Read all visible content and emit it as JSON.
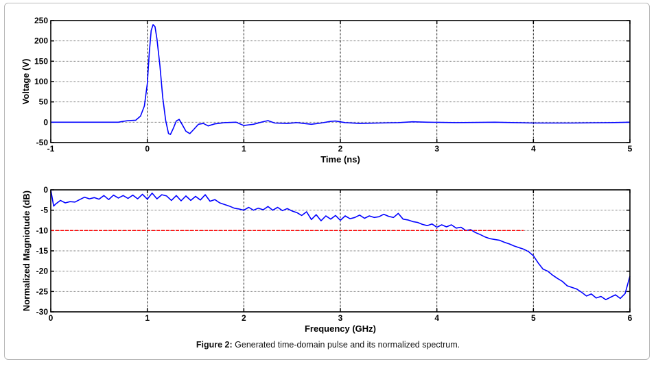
{
  "caption": {
    "label": "Figure 2:",
    "text": " Generated time-domain pulse and its normalized spectrum."
  },
  "chart_data": [
    {
      "type": "line",
      "title": "",
      "xlabel": "Time (ns)",
      "ylabel": "Voltage (V)",
      "xlim": [
        -1,
        5
      ],
      "ylim": [
        -50,
        250
      ],
      "xticks": [
        -1,
        0,
        1,
        2,
        3,
        4,
        5
      ],
      "yticks": [
        -50,
        0,
        50,
        100,
        150,
        200,
        250
      ],
      "grid": true,
      "series": [
        {
          "name": "pulse",
          "color": "#0000ff",
          "x": [
            -1,
            -0.3,
            -0.25,
            -0.2,
            -0.12,
            -0.07,
            -0.03,
            0,
            0.02,
            0.04,
            0.06,
            0.08,
            0.1,
            0.13,
            0.16,
            0.19,
            0.22,
            0.24,
            0.27,
            0.3,
            0.33,
            0.36,
            0.4,
            0.44,
            0.48,
            0.53,
            0.58,
            0.63,
            0.7,
            0.8,
            0.92,
            1.0,
            1.1,
            1.18,
            1.25,
            1.32,
            1.45,
            1.55,
            1.62,
            1.7,
            1.8,
            1.9,
            1.95,
            2.05,
            2.2,
            2.4,
            2.6,
            2.75,
            2.9,
            3.2,
            3.6,
            4.0,
            4.4,
            4.8,
            5.0
          ],
          "y": [
            0,
            0,
            2,
            4,
            5,
            15,
            40,
            95,
            170,
            225,
            240,
            235,
            205,
            140,
            60,
            5,
            -28,
            -30,
            -15,
            3,
            7,
            -5,
            -22,
            -28,
            -18,
            -5,
            -3,
            -9,
            -4,
            -1,
            0,
            -8,
            -5,
            0,
            4,
            -2,
            -3,
            -1,
            -3,
            -5,
            -2,
            2,
            3,
            -1,
            -3,
            -2,
            -1,
            1,
            0,
            -1,
            0,
            -2,
            -2,
            -1,
            0
          ]
        }
      ]
    },
    {
      "type": "line",
      "title": "",
      "xlabel": "Frequency (GHz)",
      "ylabel": "Normalized Magniotude (dB)",
      "xlim": [
        0,
        6
      ],
      "ylim": [
        -30,
        0
      ],
      "xticks": [
        0,
        1,
        2,
        3,
        4,
        5,
        6
      ],
      "yticks": [
        -30,
        -25,
        -20,
        -15,
        -10,
        -5,
        0
      ],
      "grid": true,
      "series": [
        {
          "name": "spectrum",
          "color": "#0000ff",
          "x": [
            0,
            0.03,
            0.05,
            0.1,
            0.15,
            0.2,
            0.25,
            0.3,
            0.35,
            0.4,
            0.45,
            0.5,
            0.55,
            0.6,
            0.65,
            0.7,
            0.75,
            0.8,
            0.85,
            0.9,
            0.95,
            1.0,
            1.05,
            1.1,
            1.15,
            1.2,
            1.25,
            1.3,
            1.35,
            1.4,
            1.45,
            1.5,
            1.55,
            1.6,
            1.65,
            1.7,
            1.75,
            1.8,
            1.85,
            1.9,
            1.95,
            2.0,
            2.05,
            2.1,
            2.15,
            2.2,
            2.25,
            2.3,
            2.35,
            2.4,
            2.45,
            2.5,
            2.55,
            2.6,
            2.65,
            2.7,
            2.75,
            2.8,
            2.85,
            2.9,
            2.95,
            3.0,
            3.05,
            3.1,
            3.15,
            3.2,
            3.25,
            3.3,
            3.35,
            3.4,
            3.45,
            3.5,
            3.55,
            3.6,
            3.65,
            3.7,
            3.75,
            3.8,
            3.85,
            3.9,
            3.95,
            4.0,
            4.05,
            4.1,
            4.15,
            4.2,
            4.25,
            4.3,
            4.35,
            4.4,
            4.45,
            4.5,
            4.55,
            4.6,
            4.65,
            4.7,
            4.75,
            4.8,
            4.85,
            4.9,
            4.95,
            5.0,
            5.05,
            5.1,
            5.15,
            5.2,
            5.25,
            5.3,
            5.35,
            5.4,
            5.45,
            5.5,
            5.55,
            5.6,
            5.65,
            5.7,
            5.75,
            5.8,
            5.85,
            5.9,
            5.95,
            6.0
          ],
          "y": [
            0,
            -4,
            -3.5,
            -2.6,
            -3.2,
            -2.9,
            -3,
            -2.4,
            -1.8,
            -2.2,
            -1.9,
            -2.3,
            -1.4,
            -2.4,
            -1.3,
            -2,
            -1.4,
            -2.1,
            -1.3,
            -2.2,
            -1.1,
            -2.3,
            -0.8,
            -2.2,
            -1.2,
            -1.5,
            -2.6,
            -1.4,
            -2.7,
            -1.5,
            -2.6,
            -1.6,
            -2.5,
            -1.2,
            -2.8,
            -2.4,
            -3.2,
            -3.6,
            -4,
            -4.5,
            -4.7,
            -5,
            -4.3,
            -5,
            -4.5,
            -4.9,
            -4.1,
            -5,
            -4.3,
            -5.1,
            -4.6,
            -5.2,
            -5.6,
            -6.3,
            -5.4,
            -7.3,
            -6.1,
            -7.6,
            -6.4,
            -7.2,
            -6.3,
            -7.5,
            -6.4,
            -7.1,
            -6.8,
            -6.2,
            -7,
            -6.4,
            -6.8,
            -6.6,
            -6,
            -6.5,
            -6.8,
            -5.8,
            -7.2,
            -7.4,
            -7.8,
            -8,
            -8.5,
            -8.8,
            -8.4,
            -9.2,
            -8.6,
            -9.1,
            -8.6,
            -9.4,
            -9.2,
            -10,
            -9.8,
            -10.5,
            -11,
            -11.6,
            -12,
            -12.2,
            -12.4,
            -12.9,
            -13.3,
            -13.8,
            -14.2,
            -14.6,
            -15.2,
            -16.2,
            -18,
            -19.5,
            -20,
            -21,
            -21.8,
            -22.5,
            -23.6,
            -24,
            -24.4,
            -25.2,
            -26.1,
            -25.6,
            -26.6,
            -26.2,
            -27,
            -26.4,
            -25.8,
            -26.7,
            -25.5,
            -21.2
          ]
        },
        {
          "name": "-10 dB reference",
          "color": "#ff0000",
          "style": "dashed",
          "x": [
            0,
            4.9
          ],
          "y": [
            -10,
            -10
          ]
        }
      ]
    }
  ]
}
